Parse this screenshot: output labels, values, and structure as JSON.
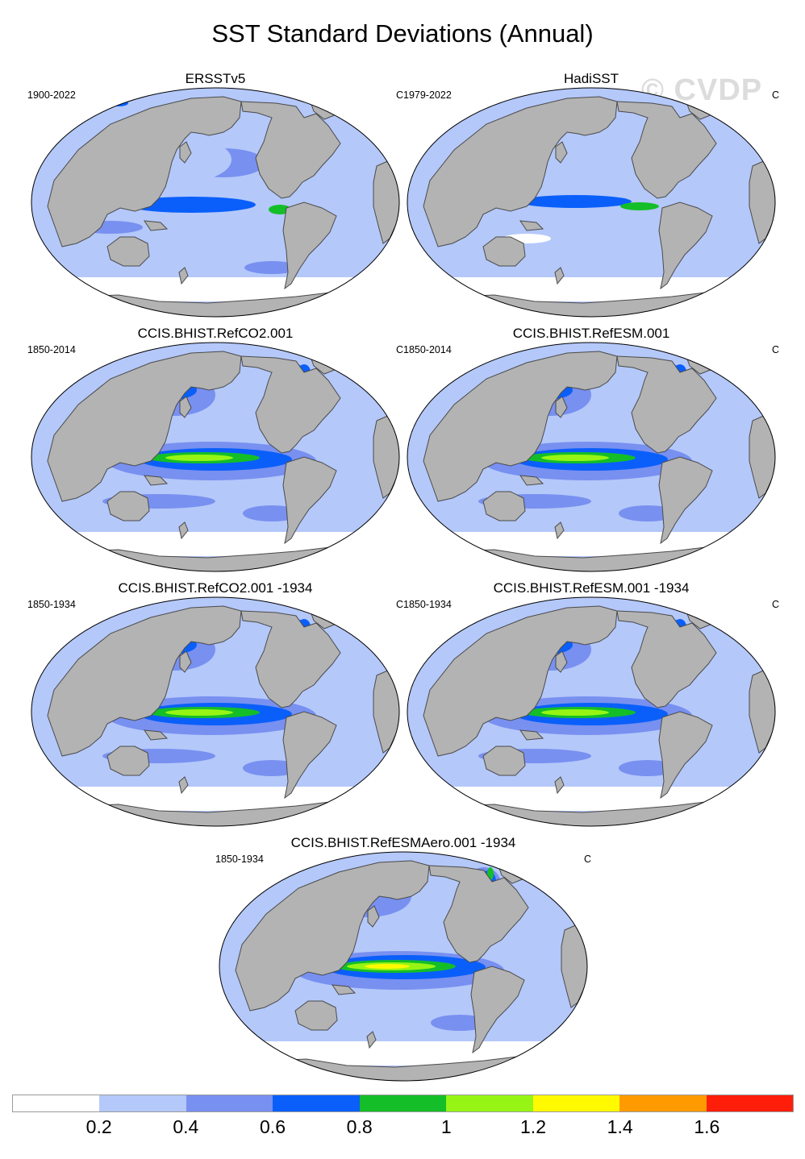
{
  "figure": {
    "title": "SST Standard Deviations (Annual)",
    "watermark": "© CVDP"
  },
  "panels": [
    {
      "title": "ERSSTv5",
      "period": "1900-2022",
      "units": "C",
      "style": "obs"
    },
    {
      "title": "HadiSST",
      "period": "1979-2022",
      "units": "C",
      "style": "obs2"
    },
    {
      "title": "CCIS.BHIST.RefCO2.001",
      "period": "1850-2014",
      "units": "C",
      "style": "model"
    },
    {
      "title": "CCIS.BHIST.RefESM.001",
      "period": "1850-2014",
      "units": "C",
      "style": "model"
    },
    {
      "title": "CCIS.BHIST.RefCO2.001 -1934",
      "period": "1850-1934",
      "units": "C",
      "style": "model"
    },
    {
      "title": "CCIS.BHIST.RefESM.001 -1934",
      "period": "1850-1934",
      "units": "C",
      "style": "model"
    },
    {
      "title": "CCIS.BHIST.RefESMAero.001 -1934",
      "period": "1850-1934",
      "units": "C",
      "style": "model_strong"
    }
  ],
  "colorbar": {
    "colors": [
      "#ffffff",
      "#b4c8fa",
      "#7890f0",
      "#0a5ffa",
      "#14be28",
      "#96f514",
      "#fffa00",
      "#ff9b00",
      "#ff1e0a"
    ],
    "labels": [
      "0.2",
      "0.4",
      "0.6",
      "0.8",
      "1",
      "1.2",
      "1.4",
      "1.6"
    ]
  },
  "map_colors": {
    "land": "#b3b3b3",
    "coast": "#4a4a4a"
  }
}
